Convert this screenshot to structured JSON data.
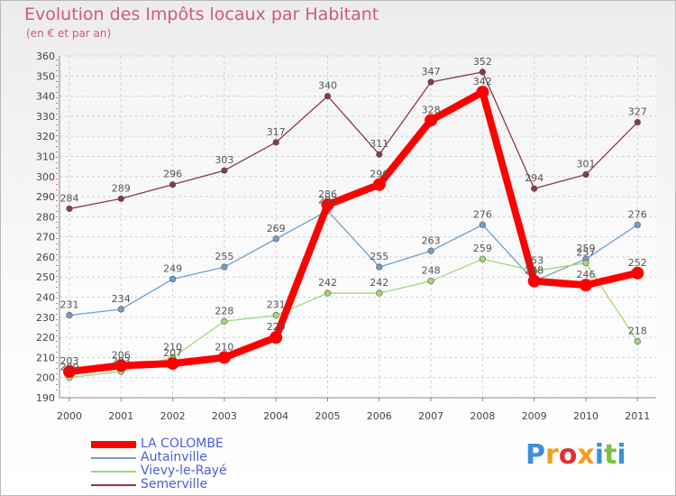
{
  "chart_data": {
    "type": "line",
    "title": "Evolution des Impôts locaux par Habitant",
    "subtitle": "(en € et par an)",
    "xlabel": "",
    "ylabel": "",
    "categories": [
      "2000",
      "2001",
      "2002",
      "2003",
      "2004",
      "2005",
      "2006",
      "2007",
      "2008",
      "2009",
      "2010",
      "2011"
    ],
    "ylim": [
      190,
      360
    ],
    "yticks": [
      190,
      200,
      210,
      220,
      230,
      240,
      250,
      260,
      270,
      280,
      290,
      300,
      310,
      320,
      330,
      340,
      350,
      360
    ],
    "grid": true,
    "legend_position": "bottom-left",
    "series": [
      {
        "name": "LA COLOMBE",
        "color": "#ff0000",
        "style": "thick",
        "values": [
          203,
          206,
          207,
          210,
          220,
          286,
          296,
          328,
          342,
          248,
          246,
          252
        ]
      },
      {
        "name": "Autainville",
        "color": "#6f9fcf",
        "style": "thin",
        "values": [
          231,
          234,
          249,
          255,
          269,
          283,
          255,
          263,
          276,
          248,
          259,
          276
        ]
      },
      {
        "name": "Vievy-le-Rayé",
        "color": "#a2d879",
        "style": "thin",
        "values": [
          200,
          203,
          210,
          228,
          231,
          242,
          242,
          248,
          259,
          253,
          257,
          218
        ]
      },
      {
        "name": "Semerville",
        "color": "#8a3a44",
        "style": "thin",
        "values": [
          284,
          289,
          296,
          303,
          317,
          340,
          311,
          347,
          352,
          294,
          301,
          327
        ]
      }
    ]
  },
  "brand": {
    "letters": [
      "P",
      "r",
      "o",
      "x",
      "i",
      "t",
      "i"
    ],
    "colors": [
      "#3f8fd8",
      "#f0a020",
      "#e03030",
      "#f0a020",
      "#3f8fd8",
      "#7cc040",
      "#3f8fd8"
    ]
  }
}
